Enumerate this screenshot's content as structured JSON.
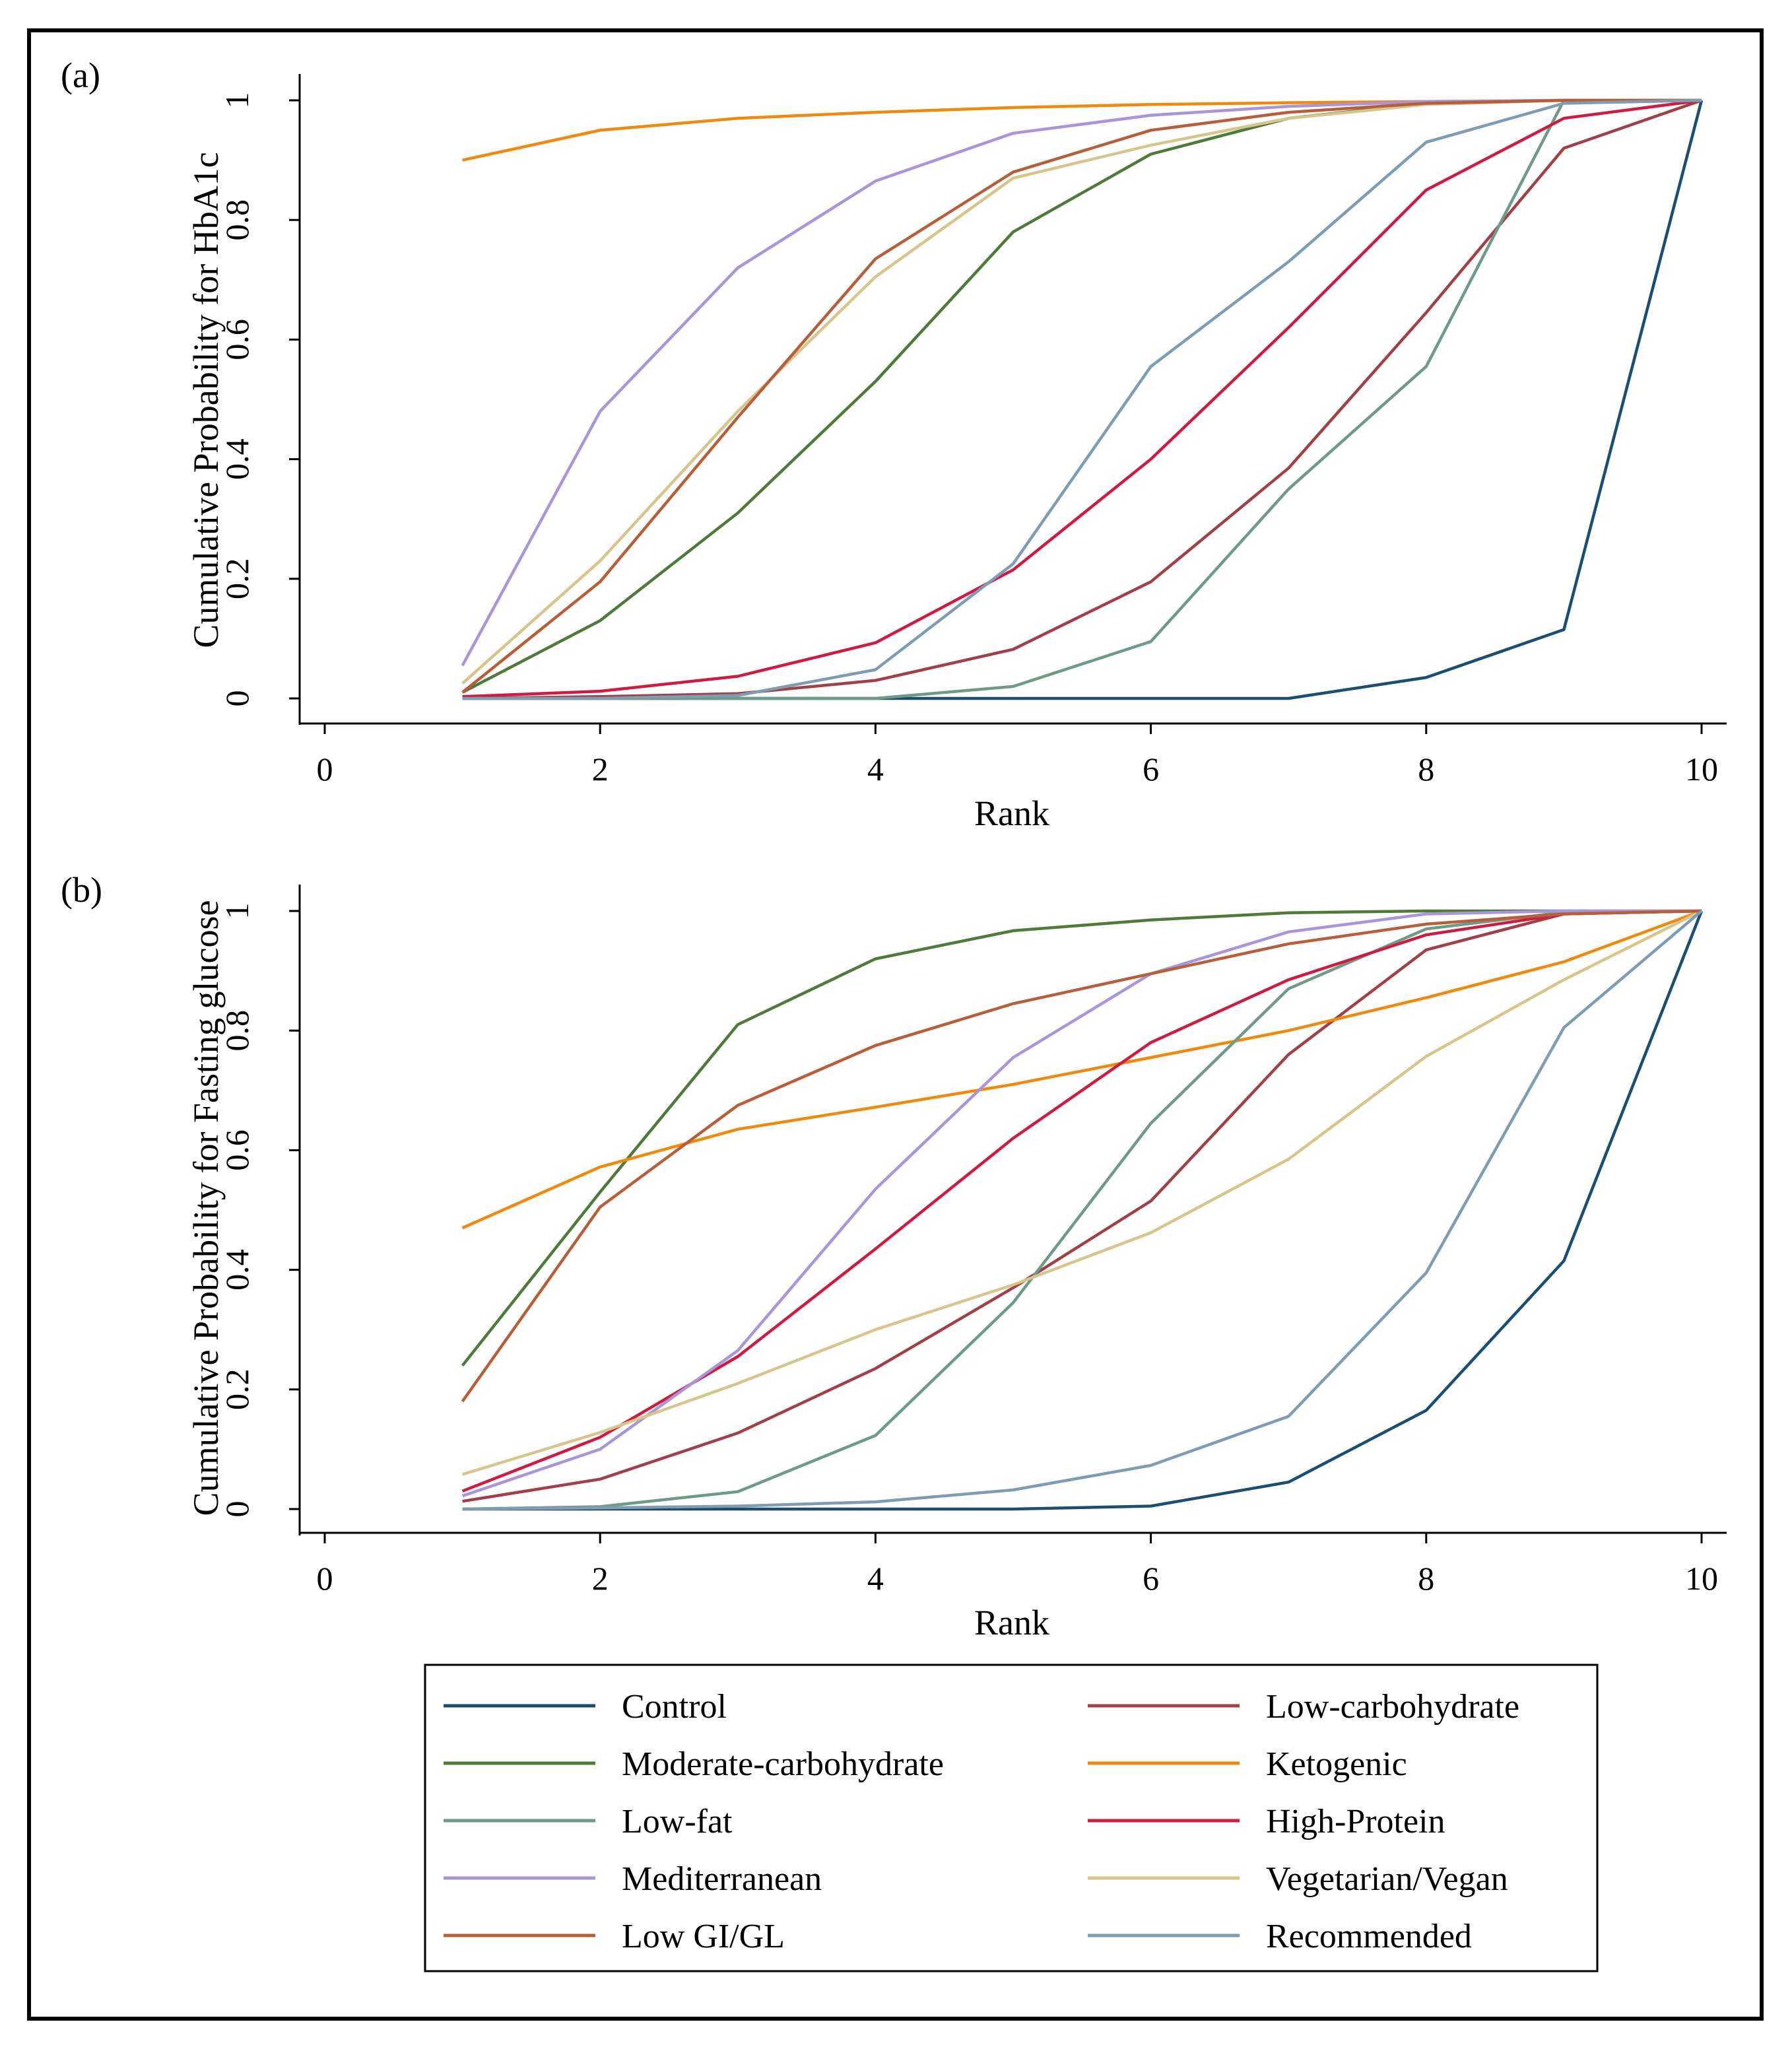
{
  "chart_data": [
    {
      "type": "line",
      "panel_label": "(a)",
      "title": "",
      "xlabel": "Rank",
      "ylabel": "Cumulative Probability for HbA1c",
      "xlim": [
        0,
        10
      ],
      "ylim": [
        0,
        1
      ],
      "xticks": [
        0,
        2,
        4,
        6,
        8,
        10
      ],
      "yticks": [
        0,
        0.2,
        0.4,
        0.6,
        0.8,
        1
      ],
      "ytick_labels": [
        "0",
        "0.2",
        "0.4",
        "0.6",
        "0.8",
        "1"
      ],
      "x": [
        1,
        2,
        3,
        4,
        5,
        6,
        7,
        8,
        9,
        10
      ],
      "grid": false,
      "series": [
        {
          "name": "Control",
          "values": [
            0.0,
            0.0,
            0.0,
            0.0,
            0.0,
            0.0,
            0.0,
            0.035,
            0.115,
            1.0
          ]
        },
        {
          "name": "Low-carbohydrate",
          "values": [
            0.0,
            0.003,
            0.008,
            0.03,
            0.082,
            0.195,
            0.385,
            0.645,
            0.92,
            1.0
          ]
        },
        {
          "name": "Moderate-carbohydrate",
          "values": [
            0.01,
            0.13,
            0.31,
            0.53,
            0.78,
            0.91,
            0.97,
            0.995,
            1.0,
            1.0
          ]
        },
        {
          "name": "Ketogenic",
          "values": [
            0.9,
            0.95,
            0.97,
            0.98,
            0.988,
            0.993,
            0.996,
            0.998,
            1.0,
            1.0
          ]
        },
        {
          "name": "Low-fat",
          "values": [
            0.0,
            0.0,
            0.0,
            0.0,
            0.02,
            0.095,
            0.35,
            0.555,
            1.0,
            1.0
          ]
        },
        {
          "name": "High-Protein",
          "values": [
            0.003,
            0.012,
            0.037,
            0.093,
            0.215,
            0.4,
            0.62,
            0.85,
            0.97,
            1.0
          ]
        },
        {
          "name": "Mediterranean",
          "values": [
            0.055,
            0.48,
            0.72,
            0.865,
            0.945,
            0.975,
            0.99,
            0.998,
            1.0,
            1.0
          ]
        },
        {
          "name": "Vegetarian/Vegan",
          "values": [
            0.025,
            0.23,
            0.48,
            0.705,
            0.87,
            0.925,
            0.97,
            0.993,
            1.0,
            1.0
          ]
        },
        {
          "name": "Low GI/GL",
          "values": [
            0.01,
            0.195,
            0.47,
            0.735,
            0.88,
            0.95,
            0.98,
            0.995,
            1.0,
            1.0
          ]
        },
        {
          "name": "Recommended",
          "values": [
            0.0,
            0.0,
            0.005,
            0.048,
            0.225,
            0.555,
            0.73,
            0.93,
            0.995,
            1.0
          ]
        }
      ]
    },
    {
      "type": "line",
      "panel_label": "(b)",
      "title": "",
      "xlabel": "Rank",
      "ylabel": "Cumulative Probability for Fasting glucose",
      "xlim": [
        0,
        10
      ],
      "ylim": [
        0,
        1
      ],
      "xticks": [
        0,
        2,
        4,
        6,
        8,
        10
      ],
      "yticks": [
        0,
        0.2,
        0.4,
        0.6,
        0.8,
        1
      ],
      "ytick_labels": [
        "0",
        "0.2",
        "0.4",
        "0.6",
        "0.8",
        "1"
      ],
      "x": [
        1,
        2,
        3,
        4,
        5,
        6,
        7,
        8,
        9,
        10
      ],
      "grid": false,
      "series": [
        {
          "name": "Control",
          "values": [
            0.0,
            0.0,
            0.0,
            0.0,
            0.0,
            0.005,
            0.045,
            0.165,
            0.415,
            1.0
          ]
        },
        {
          "name": "Low-carbohydrate",
          "values": [
            0.013,
            0.05,
            0.127,
            0.235,
            0.37,
            0.515,
            0.76,
            0.935,
            0.995,
            1.0
          ]
        },
        {
          "name": "Moderate-carbohydrate",
          "values": [
            0.24,
            0.53,
            0.81,
            0.92,
            0.967,
            0.985,
            0.997,
            1.0,
            1.0,
            1.0
          ]
        },
        {
          "name": "Ketogenic",
          "values": [
            0.47,
            0.572,
            0.635,
            0.672,
            0.71,
            0.755,
            0.8,
            0.855,
            0.915,
            1.0
          ]
        },
        {
          "name": "Low-fat",
          "values": [
            0.0,
            0.004,
            0.029,
            0.123,
            0.345,
            0.645,
            0.87,
            0.97,
            0.998,
            1.0
          ]
        },
        {
          "name": "High-Protein",
          "values": [
            0.03,
            0.12,
            0.255,
            0.435,
            0.62,
            0.78,
            0.885,
            0.96,
            0.995,
            1.0
          ]
        },
        {
          "name": "Mediterranean",
          "values": [
            0.022,
            0.1,
            0.265,
            0.535,
            0.755,
            0.895,
            0.965,
            0.995,
            1.0,
            1.0
          ]
        },
        {
          "name": "Vegetarian/Vegan",
          "values": [
            0.058,
            0.128,
            0.21,
            0.3,
            0.375,
            0.462,
            0.585,
            0.757,
            0.885,
            1.0
          ]
        },
        {
          "name": "Low GI/GL",
          "values": [
            0.18,
            0.505,
            0.675,
            0.775,
            0.845,
            0.895,
            0.945,
            0.978,
            0.995,
            1.0
          ]
        },
        {
          "name": "Recommended",
          "values": [
            0.0,
            0.002,
            0.005,
            0.012,
            0.032,
            0.073,
            0.155,
            0.395,
            0.805,
            1.0
          ]
        }
      ]
    }
  ],
  "legend": {
    "placement": "bottom",
    "entries": [
      {
        "name": "Control",
        "color": "#1b4f72"
      },
      {
        "name": "Low-carbohydrate",
        "color": "#a04048"
      },
      {
        "name": "Moderate-carbohydrate",
        "color": "#4f7a3a"
      },
      {
        "name": "Ketogenic",
        "color": "#ef8a0c"
      },
      {
        "name": "Low-fat",
        "color": "#6e9a86"
      },
      {
        "name": "High-Protein",
        "color": "#cf1b42"
      },
      {
        "name": "Mediterranean",
        "color": "#a896d8"
      },
      {
        "name": "Vegetarian/Vegan",
        "color": "#d6c68c"
      },
      {
        "name": "Low GI/GL",
        "color": "#b65f3a"
      },
      {
        "name": "Recommended",
        "color": "#7f9db2"
      }
    ]
  }
}
